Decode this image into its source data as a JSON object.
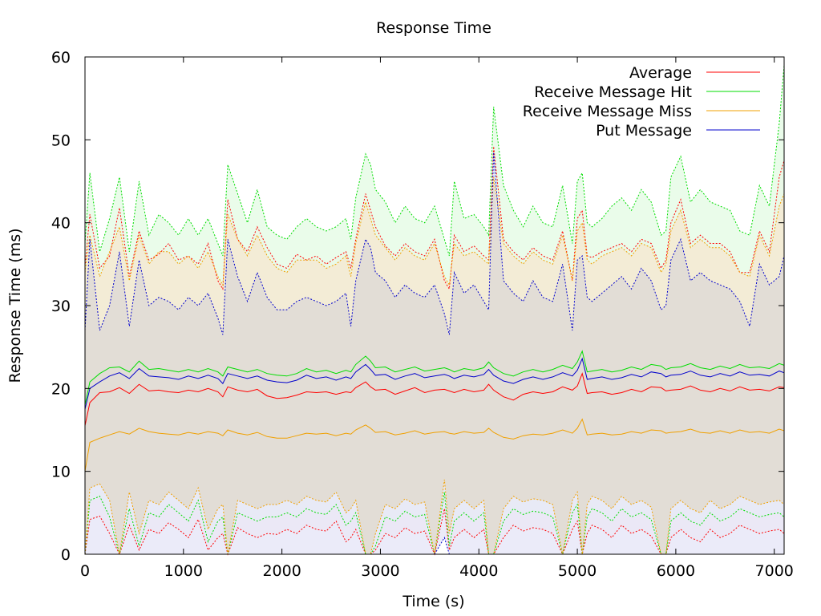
{
  "chart_data": {
    "type": "line",
    "title": "Response Time",
    "xlabel": "Time (s)",
    "ylabel": "Response Time (ms)",
    "xlim": [
      0,
      7100
    ],
    "ylim": [
      0,
      60
    ],
    "xticks": [
      0,
      1000,
      2000,
      3000,
      4000,
      5000,
      6000,
      7000
    ],
    "yticks": [
      0,
      10,
      20,
      30,
      40,
      50,
      60
    ],
    "grid": false,
    "legend_position": "top-right",
    "x": [
      0,
      50,
      150,
      250,
      350,
      450,
      550,
      650,
      750,
      850,
      950,
      1050,
      1150,
      1250,
      1350,
      1400,
      1450,
      1550,
      1650,
      1750,
      1850,
      1950,
      2050,
      2150,
      2250,
      2350,
      2450,
      2550,
      2650,
      2700,
      2750,
      2850,
      2900,
      2950,
      3050,
      3150,
      3250,
      3350,
      3450,
      3550,
      3650,
      3700,
      3750,
      3850,
      3950,
      4050,
      4100,
      4150,
      4250,
      4350,
      4450,
      4550,
      4650,
      4750,
      4850,
      4950,
      5000,
      5050,
      5100,
      5150,
      5250,
      5350,
      5450,
      5550,
      5650,
      5750,
      5850,
      5900,
      5950,
      6050,
      6150,
      6250,
      6350,
      6450,
      6550,
      6650,
      6750,
      6850,
      6950,
      7050,
      7100
    ],
    "series": [
      {
        "name": "Average",
        "color": "#ff0000",
        "mean": [
          15.5,
          18.3,
          19.5,
          19.6,
          20.1,
          19.4,
          20.5,
          19.7,
          19.8,
          19.6,
          19.5,
          19.8,
          19.6,
          20.0,
          19.6,
          19.0,
          20.2,
          19.8,
          19.6,
          19.9,
          19.1,
          18.8,
          18.9,
          19.2,
          19.6,
          19.5,
          19.6,
          19.3,
          19.6,
          19.5,
          20.1,
          20.8,
          20.2,
          19.8,
          19.9,
          19.3,
          19.7,
          20.1,
          19.5,
          19.8,
          19.9,
          19.7,
          19.5,
          19.9,
          19.6,
          19.8,
          20.5,
          19.8,
          19.0,
          18.6,
          19.3,
          19.6,
          19.4,
          19.6,
          20.2,
          19.8,
          20.3,
          21.8,
          19.4,
          19.5,
          19.6,
          19.3,
          19.5,
          19.9,
          19.6,
          20.2,
          20.1,
          19.7,
          19.8,
          19.9,
          20.3,
          19.8,
          19.6,
          20.0,
          19.7,
          20.2,
          19.8,
          19.9,
          19.7,
          20.2,
          20.1
        ],
        "upper": [
          34.7,
          41.0,
          34.5,
          36.0,
          41.8,
          33.5,
          39.0,
          35.5,
          36.2,
          37.5,
          35.5,
          36.0,
          35.0,
          37.5,
          33.0,
          32.0,
          42.8,
          38.0,
          36.5,
          39.5,
          37.0,
          35.0,
          34.5,
          36.2,
          35.5,
          36.0,
          35.0,
          35.8,
          36.5,
          34.5,
          38.0,
          43.5,
          41.5,
          39.5,
          37.2,
          36.0,
          37.5,
          36.5,
          36.0,
          38.0,
          33.0,
          32.0,
          38.5,
          36.5,
          37.2,
          36.0,
          35.5,
          49.2,
          38.0,
          36.5,
          35.5,
          37.0,
          36.0,
          35.5,
          39.0,
          33.0,
          40.5,
          41.5,
          36.0,
          35.8,
          36.5,
          37.0,
          37.5,
          36.5,
          38.0,
          37.5,
          34.5,
          35.5,
          40.0,
          42.8,
          37.5,
          38.5,
          37.5,
          37.5,
          36.5,
          34.0,
          34.0,
          39.0,
          36.5,
          45.5,
          47.5
        ],
        "lower": [
          0,
          4.2,
          4.6,
          2.5,
          0,
          3.5,
          0.5,
          3.0,
          2.5,
          3.8,
          3.0,
          2.0,
          4.2,
          0.5,
          2.0,
          2.5,
          0,
          3.2,
          2.5,
          2.0,
          2.5,
          2.4,
          3.0,
          2.5,
          3.5,
          3.0,
          2.8,
          4.0,
          1.5,
          2.0,
          3.0,
          0,
          0,
          0.5,
          2.5,
          2.0,
          3.2,
          2.5,
          2.8,
          0,
          5.5,
          0.5,
          2.0,
          3.0,
          2.0,
          3.0,
          0,
          0,
          2.0,
          3.5,
          2.8,
          3.2,
          3.0,
          2.5,
          0,
          3.0,
          4.0,
          0,
          2.5,
          3.5,
          3.0,
          2.0,
          3.5,
          2.5,
          3.0,
          2.2,
          0,
          0,
          2.0,
          3.0,
          2.0,
          1.5,
          3.0,
          2.0,
          2.5,
          3.5,
          3.0,
          2.5,
          2.8,
          3.0,
          2.5
        ]
      },
      {
        "name": "Receive Message Hit",
        "color": "#00dd00",
        "mean": [
          18.0,
          20.8,
          21.8,
          22.5,
          22.6,
          22.0,
          23.3,
          22.3,
          22.4,
          22.2,
          22.0,
          22.3,
          22.0,
          22.4,
          22.0,
          21.5,
          22.6,
          22.3,
          22.0,
          22.3,
          21.8,
          21.6,
          21.5,
          21.8,
          22.4,
          22.0,
          22.2,
          21.8,
          22.2,
          22.0,
          22.9,
          23.9,
          23.3,
          22.5,
          22.6,
          22.0,
          22.3,
          22.6,
          22.1,
          22.3,
          22.5,
          22.3,
          22.0,
          22.4,
          22.2,
          22.5,
          23.2,
          22.5,
          21.8,
          21.5,
          22.0,
          22.3,
          22.0,
          22.3,
          22.8,
          22.4,
          23.2,
          24.5,
          22.0,
          22.1,
          22.3,
          22.0,
          22.2,
          22.6,
          22.3,
          22.9,
          22.7,
          22.3,
          22.5,
          22.6,
          23.0,
          22.5,
          22.3,
          22.7,
          22.4,
          22.9,
          22.5,
          22.6,
          22.4,
          23.0,
          22.8
        ],
        "upper": [
          37.5,
          46.0,
          36.5,
          40.5,
          45.5,
          36.5,
          45.0,
          38.5,
          41.0,
          40.0,
          38.5,
          40.5,
          38.5,
          40.5,
          37.5,
          36.0,
          47.0,
          43.5,
          40.0,
          44.0,
          39.5,
          38.5,
          38.0,
          39.5,
          40.5,
          39.5,
          39.0,
          39.5,
          40.5,
          38.0,
          43.0,
          48.3,
          47.0,
          44.0,
          42.5,
          40.0,
          42.0,
          40.5,
          40.0,
          42.0,
          38.0,
          36.0,
          45.0,
          40.5,
          41.0,
          39.5,
          38.5,
          54.0,
          44.5,
          41.5,
          39.5,
          42.0,
          40.0,
          39.5,
          44.5,
          37.5,
          45.0,
          46.0,
          40.0,
          39.5,
          40.5,
          42.0,
          43.0,
          41.5,
          44.0,
          42.5,
          38.5,
          39.0,
          45.5,
          48.0,
          42.5,
          44.0,
          42.5,
          42.0,
          41.5,
          39.0,
          38.5,
          44.5,
          42.0,
          52.0,
          59.0
        ],
        "lower": [
          0,
          6.5,
          7.0,
          4.5,
          0,
          5.5,
          1.0,
          5.0,
          4.5,
          6.0,
          5.0,
          4.0,
          6.5,
          1.5,
          4.0,
          4.5,
          0,
          5.0,
          4.5,
          4.0,
          4.5,
          4.5,
          5.0,
          4.5,
          5.5,
          5.0,
          4.8,
          6.0,
          3.5,
          4.0,
          5.0,
          0,
          0,
          1.0,
          4.5,
          4.0,
          5.2,
          4.5,
          4.8,
          0,
          7.5,
          1.0,
          4.0,
          5.0,
          4.0,
          5.0,
          0,
          0,
          4.0,
          5.5,
          4.8,
          5.2,
          5.0,
          4.5,
          0,
          5.0,
          6.0,
          0,
          4.5,
          5.5,
          5.0,
          4.0,
          5.5,
          4.5,
          5.0,
          4.2,
          0,
          0,
          4.0,
          5.0,
          4.0,
          3.5,
          5.0,
          4.0,
          4.5,
          5.5,
          5.0,
          4.5,
          4.8,
          5.0,
          4.5
        ]
      },
      {
        "name": "Receive Message Miss",
        "color": "#f0a000",
        "mean": [
          10.0,
          13.5,
          14.0,
          14.4,
          14.8,
          14.5,
          15.2,
          14.8,
          14.6,
          14.5,
          14.4,
          14.7,
          14.5,
          14.8,
          14.6,
          14.3,
          15.0,
          14.6,
          14.4,
          14.7,
          14.2,
          14.0,
          14.0,
          14.3,
          14.6,
          14.5,
          14.6,
          14.3,
          14.6,
          14.5,
          15.0,
          15.6,
          15.2,
          14.7,
          14.8,
          14.4,
          14.6,
          14.9,
          14.5,
          14.7,
          14.8,
          14.6,
          14.5,
          14.8,
          14.6,
          14.7,
          15.2,
          14.7,
          14.1,
          13.9,
          14.3,
          14.5,
          14.4,
          14.6,
          15.0,
          14.6,
          15.2,
          16.3,
          14.4,
          14.5,
          14.6,
          14.4,
          14.5,
          14.8,
          14.6,
          15.0,
          14.9,
          14.6,
          14.7,
          14.8,
          15.1,
          14.7,
          14.6,
          14.9,
          14.6,
          15.0,
          14.7,
          14.8,
          14.6,
          15.1,
          14.9
        ],
        "upper": [
          34.0,
          38.5,
          33.5,
          36.5,
          39.5,
          33.0,
          38.5,
          35.0,
          36.5,
          36.5,
          35.0,
          36.0,
          34.5,
          36.5,
          33.5,
          32.5,
          41.0,
          38.0,
          36.0,
          38.5,
          36.0,
          34.5,
          34.0,
          35.5,
          35.5,
          35.5,
          34.5,
          35.0,
          36.0,
          33.5,
          37.5,
          42.5,
          40.5,
          38.5,
          37.0,
          35.5,
          37.0,
          36.0,
          35.5,
          37.5,
          33.5,
          32.5,
          37.5,
          36.0,
          36.5,
          35.5,
          35.0,
          45.5,
          37.5,
          36.0,
          35.0,
          36.5,
          35.5,
          35.0,
          38.5,
          33.0,
          39.0,
          40.0,
          35.5,
          35.0,
          36.0,
          36.5,
          37.0,
          36.0,
          37.5,
          37.0,
          34.0,
          35.0,
          39.0,
          41.5,
          37.0,
          38.0,
          37.0,
          37.0,
          36.0,
          34.0,
          33.5,
          38.5,
          36.0,
          42.0,
          43.5
        ],
        "lower": [
          0,
          8.0,
          8.5,
          6.5,
          0,
          7.5,
          2.5,
          6.5,
          6.0,
          7.5,
          6.5,
          5.5,
          8.0,
          3.0,
          5.5,
          6.0,
          0,
          6.5,
          6.0,
          5.5,
          6.0,
          6.0,
          6.5,
          6.0,
          7.0,
          6.5,
          6.3,
          7.5,
          5.0,
          5.5,
          6.5,
          0,
          0,
          2.5,
          6.0,
          5.5,
          6.7,
          6.0,
          6.3,
          0,
          9.0,
          2.5,
          5.5,
          6.5,
          5.5,
          6.5,
          0,
          0,
          5.5,
          7.0,
          6.3,
          6.7,
          6.5,
          6.0,
          0,
          6.5,
          7.5,
          0,
          6.0,
          7.0,
          6.5,
          5.5,
          7.0,
          6.0,
          6.5,
          5.7,
          0,
          0,
          5.5,
          6.5,
          5.5,
          5.0,
          6.5,
          5.5,
          6.0,
          7.0,
          6.5,
          6.0,
          6.3,
          6.5,
          6.0
        ]
      },
      {
        "name": "Put Message",
        "color": "#0000cc",
        "mean": [
          17.5,
          20.0,
          20.8,
          21.5,
          21.9,
          21.2,
          22.4,
          21.5,
          21.4,
          21.3,
          21.1,
          21.5,
          21.2,
          21.6,
          21.2,
          20.6,
          21.8,
          21.5,
          21.2,
          21.5,
          21.0,
          20.8,
          20.7,
          21.0,
          21.6,
          21.2,
          21.4,
          21.0,
          21.4,
          21.2,
          22.0,
          22.9,
          22.3,
          21.6,
          21.7,
          21.1,
          21.5,
          21.8,
          21.3,
          21.5,
          21.7,
          21.5,
          21.2,
          21.6,
          21.4,
          21.7,
          22.3,
          21.6,
          20.9,
          20.6,
          21.1,
          21.4,
          21.1,
          21.4,
          21.9,
          21.5,
          22.2,
          23.6,
          21.1,
          21.2,
          21.4,
          21.1,
          21.3,
          21.7,
          21.4,
          22.0,
          21.8,
          21.4,
          21.6,
          21.7,
          22.1,
          21.6,
          21.4,
          21.8,
          21.5,
          22.0,
          21.6,
          21.7,
          21.5,
          22.1,
          21.9
        ],
        "upper": [
          27.0,
          38.0,
          27.0,
          30.0,
          36.5,
          27.5,
          35.5,
          30.0,
          31.0,
          30.5,
          29.5,
          31.0,
          30.0,
          31.5,
          28.5,
          26.5,
          38.0,
          33.5,
          30.5,
          34.0,
          31.0,
          29.5,
          29.5,
          30.5,
          31.0,
          30.5,
          30.0,
          30.5,
          31.5,
          27.5,
          33.0,
          38.0,
          37.0,
          34.0,
          33.0,
          31.0,
          32.5,
          31.5,
          31.0,
          32.5,
          29.0,
          26.5,
          34.0,
          31.5,
          32.5,
          30.5,
          29.5,
          48.5,
          33.0,
          31.5,
          30.5,
          33.0,
          31.0,
          30.5,
          35.0,
          27.0,
          35.5,
          36.0,
          31.0,
          30.5,
          31.5,
          32.5,
          33.5,
          32.0,
          34.5,
          33.0,
          29.5,
          30.0,
          35.5,
          38.0,
          33.0,
          34.0,
          33.0,
          32.5,
          32.0,
          30.5,
          27.5,
          35.0,
          32.5,
          33.5,
          36.0
        ],
        "lower": [
          0,
          0,
          0,
          0,
          0,
          0,
          0,
          0,
          0,
          0,
          0,
          0,
          0,
          0,
          0,
          0,
          0,
          0,
          0,
          0,
          0,
          0,
          0,
          0,
          0,
          0,
          0,
          0,
          0,
          0,
          0,
          0,
          0,
          0,
          0,
          0,
          0,
          0,
          0,
          0,
          2.0,
          0,
          0,
          0,
          0,
          0,
          0,
          0,
          0,
          0,
          0,
          0,
          0,
          0,
          0,
          0,
          0,
          0,
          0,
          0,
          0,
          0,
          0,
          0,
          0,
          0,
          0,
          0,
          0,
          0,
          0,
          0,
          0,
          0,
          0,
          0,
          0,
          0,
          0,
          0,
          0
        ]
      }
    ]
  },
  "band_fills": {
    "Average": "#fde8e8",
    "Receive Message Hit": "#e6fbe6",
    "Receive Message Miss": "#f5ead2",
    "Put Message": "#e8e8f8"
  },
  "overlap_fill": "#e2ddd6"
}
